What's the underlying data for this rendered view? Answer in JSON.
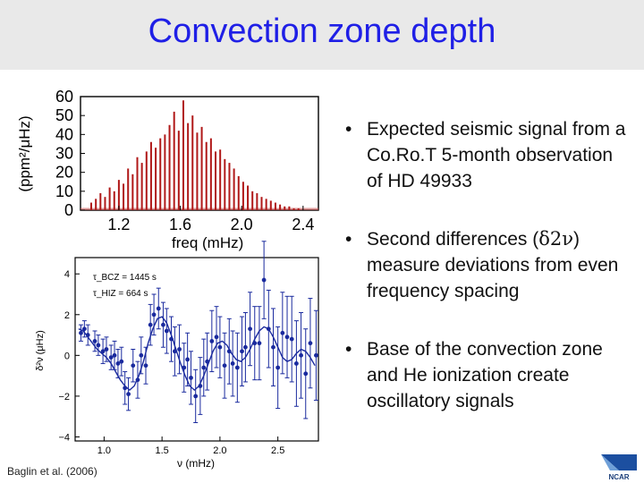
{
  "header": {
    "title": "Convection zone depth"
  },
  "bullets": [
    {
      "text": "Expected seismic signal from a Co.Ro.T 5-month observation of HD 49933"
    },
    {
      "text_pre": "Second differences (",
      "sym_delta": "δ",
      "sym_two": "2",
      "sym_nu": "ν",
      "text_post": ") measure deviations from even frequency spacing"
    },
    {
      "text": "Base of the convection zone and He ionization create oscillatory signals"
    }
  ],
  "citation": "Baglin et al. (2006)",
  "logo": {
    "label": "NCAR"
  },
  "colors": {
    "title": "#1f1fe6",
    "spectrum": "#b01818",
    "points": "#1a2a9e",
    "band": "#e9e9e9"
  },
  "chart_data": [
    {
      "type": "bar",
      "title": "",
      "xlabel": "freq (mHz)",
      "ylabel": "(ppm²/μHz)",
      "xlim": [
        0.95,
        2.5
      ],
      "ylim": [
        0,
        60
      ],
      "xticks": [
        "1.2",
        "1.6",
        "2.0",
        "2.4"
      ],
      "yticks": [
        "0",
        "10",
        "20",
        "30",
        "40",
        "50",
        "60"
      ],
      "x": [
        1.02,
        1.05,
        1.08,
        1.11,
        1.14,
        1.17,
        1.2,
        1.23,
        1.26,
        1.29,
        1.32,
        1.35,
        1.38,
        1.41,
        1.44,
        1.47,
        1.5,
        1.53,
        1.56,
        1.59,
        1.62,
        1.65,
        1.68,
        1.71,
        1.74,
        1.77,
        1.8,
        1.83,
        1.86,
        1.89,
        1.92,
        1.95,
        1.98,
        2.01,
        2.04,
        2.07,
        2.1,
        2.13,
        2.16,
        2.19,
        2.22,
        2.25,
        2.28,
        2.31,
        2.34,
        2.37
      ],
      "values": [
        4,
        6,
        9,
        7,
        12,
        10,
        16,
        14,
        22,
        19,
        28,
        25,
        31,
        36,
        33,
        38,
        40,
        45,
        52,
        42,
        58,
        46,
        50,
        41,
        44,
        36,
        38,
        31,
        32,
        27,
        25,
        22,
        18,
        15,
        13,
        10,
        9,
        7,
        6,
        5,
        4,
        3,
        2,
        2,
        1,
        1
      ]
    },
    {
      "type": "scatter",
      "title": "",
      "xlabel": "ν (mHz)",
      "ylabel": "δ²ν (μHz)",
      "xlim": [
        0.75,
        2.85
      ],
      "ylim": [
        -4.2,
        4.8
      ],
      "xticks": [
        "1.0",
        "1.5",
        "2.0",
        "2.5"
      ],
      "yticks": [
        "−4",
        "−2",
        "0",
        "2",
        "4"
      ],
      "annotations": [
        "τ_BCZ = 1445 s",
        "τ_HIZ = 664 s"
      ],
      "x": [
        0.8,
        0.83,
        0.86,
        0.92,
        0.95,
        0.99,
        1.02,
        1.06,
        1.09,
        1.12,
        1.15,
        1.18,
        1.21,
        1.25,
        1.29,
        1.32,
        1.36,
        1.4,
        1.43,
        1.47,
        1.51,
        1.54,
        1.58,
        1.61,
        1.65,
        1.69,
        1.72,
        1.75,
        1.79,
        1.83,
        1.86,
        1.89,
        1.93,
        1.97,
        2.0,
        2.04,
        2.08,
        2.11,
        2.15,
        2.19,
        2.22,
        2.26,
        2.3,
        2.34,
        2.38,
        2.42,
        2.46,
        2.5,
        2.54,
        2.58,
        2.62,
        2.66,
        2.7,
        2.74,
        2.78,
        2.83
      ],
      "y": [
        1.1,
        1.3,
        1.0,
        0.7,
        0.5,
        0.2,
        0.3,
        -0.1,
        0.0,
        -0.4,
        -0.3,
        -1.6,
        -1.9,
        -0.5,
        -1.2,
        0.0,
        -0.5,
        1.5,
        2.0,
        2.3,
        1.5,
        1.2,
        0.8,
        0.2,
        0.3,
        -0.6,
        -0.2,
        -1.1,
        -2.0,
        -1.5,
        -0.6,
        -0.3,
        0.7,
        0.9,
        0.4,
        -0.5,
        0.2,
        -0.4,
        -0.6,
        0.2,
        0.4,
        1.3,
        0.6,
        0.6,
        3.7,
        1.3,
        0.4,
        -0.6,
        1.1,
        0.9,
        0.8,
        -0.4,
        0.0,
        -0.9,
        0.6,
        0.0
      ],
      "err": [
        0.4,
        0.4,
        0.5,
        0.5,
        0.5,
        0.6,
        0.6,
        0.6,
        0.7,
        0.7,
        0.7,
        0.8,
        0.8,
        0.8,
        0.9,
        0.9,
        0.9,
        1.0,
        1.0,
        1.0,
        1.1,
        1.1,
        1.1,
        1.2,
        1.2,
        1.2,
        1.3,
        1.3,
        1.3,
        1.4,
        1.4,
        1.4,
        1.5,
        1.5,
        1.5,
        1.6,
        1.6,
        1.6,
        1.7,
        1.7,
        1.7,
        1.8,
        1.8,
        1.8,
        1.9,
        1.9,
        1.9,
        2.0,
        2.0,
        2.0,
        2.1,
        2.1,
        2.1,
        2.2,
        2.2,
        2.2
      ],
      "fit": {
        "x": [
          0.78,
          0.82,
          0.86,
          0.9,
          0.94,
          0.98,
          1.02,
          1.06,
          1.1,
          1.14,
          1.18,
          1.22,
          1.26,
          1.3,
          1.34,
          1.38,
          1.42,
          1.46,
          1.5,
          1.54,
          1.58,
          1.62,
          1.66,
          1.7,
          1.74,
          1.78,
          1.82,
          1.86,
          1.9,
          1.94,
          1.98,
          2.02,
          2.06,
          2.1,
          2.14,
          2.18,
          2.22,
          2.26,
          2.3,
          2.34,
          2.38,
          2.42,
          2.46,
          2.5,
          2.54,
          2.58,
          2.62,
          2.66,
          2.7,
          2.74,
          2.78,
          2.82
        ],
        "y": [
          1.3,
          1.2,
          0.9,
          0.6,
          0.3,
          0.1,
          -0.1,
          -0.4,
          -0.8,
          -1.2,
          -1.5,
          -1.7,
          -1.5,
          -1.0,
          -0.3,
          0.6,
          1.3,
          1.8,
          1.9,
          1.6,
          1.0,
          0.3,
          -0.4,
          -1.0,
          -1.5,
          -1.7,
          -1.5,
          -1.0,
          -0.4,
          0.2,
          0.6,
          0.7,
          0.5,
          0.1,
          -0.2,
          -0.3,
          -0.1,
          0.3,
          0.8,
          1.2,
          1.4,
          1.3,
          0.9,
          0.4,
          -0.1,
          -0.3,
          -0.2,
          0.1,
          0.3,
          0.2,
          -0.1,
          -0.5
        ]
      }
    }
  ]
}
